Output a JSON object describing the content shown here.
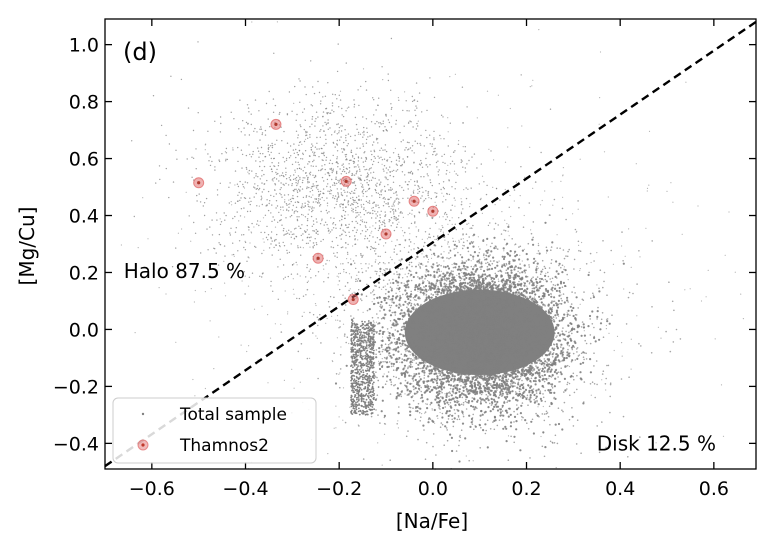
{
  "chart_data": {
    "type": "scatter",
    "panel_label": "(d)",
    "xlabel": "[Na/Fe]",
    "ylabel": "[Mg/Cu]",
    "xlim": [
      -0.7,
      0.69
    ],
    "ylim": [
      -0.49,
      1.09
    ],
    "x_ticks": [
      -0.6,
      -0.4,
      -0.2,
      0.0,
      0.2,
      0.4,
      0.6
    ],
    "x_tick_labels": [
      "−0.6",
      "−0.4",
      "−0.2",
      "0.0",
      "0.2",
      "0.4",
      "0.6"
    ],
    "y_ticks": [
      -0.4,
      -0.2,
      0.0,
      0.2,
      0.4,
      0.6,
      0.8,
      1.0
    ],
    "y_tick_labels": [
      "−0.4",
      "−0.2",
      "0.0",
      "0.2",
      "0.4",
      "0.6",
      "0.8",
      "1.0"
    ],
    "grid": false,
    "legend_position": "bottom-left",
    "colors": {
      "total_sample": "#808080",
      "thamnos2": "#e06666",
      "divider": "#000000"
    },
    "divider_line": {
      "style": "dashed",
      "points": [
        [
          -0.7,
          -0.48
        ],
        [
          0.69,
          1.08
        ]
      ]
    },
    "annotations": [
      {
        "text": "Halo 87.5 %",
        "x": -0.66,
        "y": 0.205
      },
      {
        "text": "Disk 12.5 %",
        "x": 0.35,
        "y": -0.4
      }
    ],
    "series": [
      {
        "name": "Total sample",
        "marker": "dot",
        "description_density": "dense cloud centered near (0.1, 0.0)",
        "center": [
          0.1,
          0.0
        ]
      },
      {
        "name": "Thamnos2",
        "marker": "circle",
        "points": [
          {
            "x": -0.5,
            "y": 0.515
          },
          {
            "x": -0.335,
            "y": 0.72
          },
          {
            "x": -0.185,
            "y": 0.52
          },
          {
            "x": -0.04,
            "y": 0.45
          },
          {
            "x": 0.0,
            "y": 0.415
          },
          {
            "x": -0.1,
            "y": 0.335
          },
          {
            "x": -0.245,
            "y": 0.25
          },
          {
            "x": -0.17,
            "y": 0.105
          }
        ]
      }
    ]
  }
}
